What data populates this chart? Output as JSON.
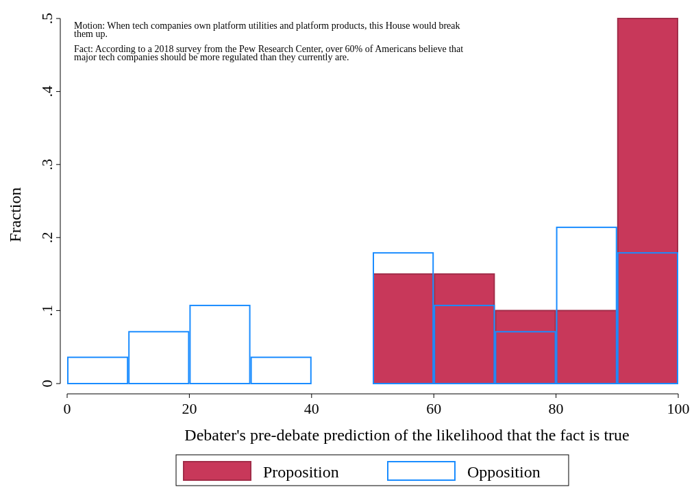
{
  "chart_data": {
    "type": "histogram",
    "xlabel": "Debater's pre-debate prediction of the likelihood that the fact is true",
    "ylabel": "Fraction",
    "annotations": [
      "Motion: When tech companies own platform utilities and platform products, this House would break them up.",
      "Fact: According to a 2018 survey from the Pew Research Center, over 60% of Americans believe that major tech companies should be more regulated than they currently are."
    ],
    "bins": [
      0,
      10,
      20,
      30,
      40,
      50,
      60,
      70,
      80,
      90,
      100
    ],
    "series": [
      {
        "name": "Proposition",
        "color": "#c8385a",
        "values": [
          0,
          0,
          0,
          0,
          0,
          0.15,
          0.15,
          0.1,
          0.1,
          0.5
        ]
      },
      {
        "name": "Opposition",
        "color": "#1a8cff",
        "values": [
          0.036,
          0.071,
          0.107,
          0.036,
          0,
          0.179,
          0.107,
          0.071,
          0.214,
          0.179
        ]
      }
    ],
    "xlim": [
      0,
      100
    ],
    "xticks": [
      0,
      20,
      40,
      60,
      80,
      100
    ],
    "ylim": [
      0,
      0.5
    ],
    "yticks": [
      0,
      {
        "value": 0.1,
        "label": ".1"
      },
      {
        "value": 0.2,
        "label": ".2"
      },
      {
        "value": 0.3,
        "label": ".3"
      },
      {
        "value": 0.4,
        "label": ".4"
      },
      {
        "value": 0.5,
        "label": ".5"
      }
    ],
    "legend": "bottom"
  }
}
